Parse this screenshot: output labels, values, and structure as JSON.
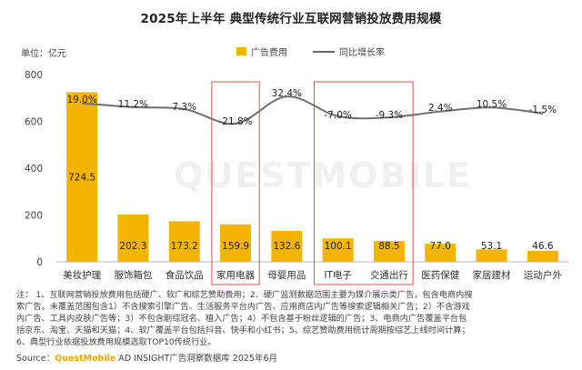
{
  "title": "2025年上半年 典型传统行业互联网营销投放费用规模",
  "unit_label": "单位：亿元",
  "legend": {
    "bar": "广告费用",
    "line": "同比增长率"
  },
  "watermark": "QUESTMOBILE",
  "colors": {
    "bar": "#f5b400",
    "line": "#707070",
    "highlight_box": "#d9534f",
    "axis": "#bbbbbb"
  },
  "chart_data": {
    "type": "bar",
    "categories": [
      "美妆护理",
      "服饰箱包",
      "食品饮品",
      "家用电器",
      "母婴用品",
      "IT电子",
      "交通出行",
      "医药保健",
      "家居建材",
      "运动户外"
    ],
    "series": [
      {
        "name": "广告费用",
        "type": "bar",
        "values": [
          724.5,
          202.3,
          173.2,
          159.9,
          132.6,
          100.1,
          88.5,
          77.0,
          53.1,
          46.6
        ],
        "labels": [
          "724.5",
          "202.3",
          "173.2",
          "159.9",
          "132.6",
          "100.1",
          "88.5",
          "77.0",
          "53.1",
          "46.6"
        ]
      },
      {
        "name": "同比增长率",
        "type": "line",
        "values": [
          19.0,
          11.2,
          7.3,
          -21.8,
          32.4,
          -7.0,
          -9.3,
          2.4,
          10.5,
          -1.5
        ],
        "labels": [
          "19.0%",
          "11.2%",
          "7.3%",
          "-21.8%",
          "32.4%",
          "-7.0%",
          "-9.3%",
          "2.4%",
          "10.5%",
          "-1.5%"
        ]
      }
    ],
    "yticks": [
      "0",
      "200",
      "400",
      "600",
      "800"
    ],
    "ylim": [
      0,
      800
    ],
    "highlighted_categories": [
      "家用电器",
      "IT电子",
      "交通出行"
    ],
    "grid": false
  },
  "notes": [
    "注：  1、互联网营销投放费用包括硬广、软广和综艺赞助费用；2、硬广监测数据范围主要为媒介展示类广告，包含电商内搜",
    "索广告，未覆盖范围包含1）不含搜索引擎广告、生活服务平台内广告、应用商店内广告等搜索逻辑相关广告；2）不含游戏",
    "内广告、工具内皮肤广告等；3）不包含剧综冠名、植入广告；4）不包含基于粉丝逻辑的广告；3、电商内广告覆盖平台包",
    "括京东、淘宝、天猫和天猫；4、软广覆盖平台包括抖音、快手和小红书；5、综艺赞助费用统计周期按综艺上线时间计算；",
    "6、典型行业依据投放费用规模选取TOP10传统行业。"
  ],
  "source": {
    "prefix": "Source：",
    "brand": "QuestMobile",
    "suffix": " AD INSIGHT广告洞察数据库 2025年6月"
  }
}
